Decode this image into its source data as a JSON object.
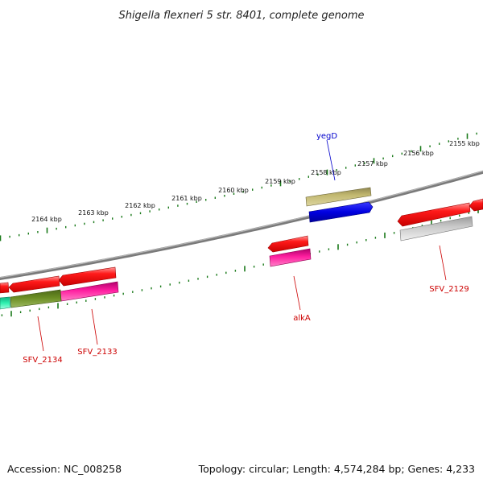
{
  "title": "Shigella flexneri 5 str. 8401, complete genome",
  "accession": "Accession: NC_008258",
  "summary": "Topology: circular; Length: 4,574,284 bp; Genes: 4,233",
  "tick_labels": [
    "2164 kbp",
    "2163 kbp",
    "2162 kbp",
    "2161 kbp",
    "2160 kbp",
    "2159 kbp",
    "2158 kbp",
    "2157 kbp",
    "2156 kbp",
    "2155 kbp"
  ],
  "genes": {
    "yegD": "yegD",
    "alkA": "alkA",
    "SFV_2129": "SFV_2129",
    "SFV_2133": "SFV_2133",
    "SFV_2134": "SFV_2134"
  },
  "colors": {
    "backbone": "#808080",
    "ticks": "#1a7a1a",
    "cds_red": "#ee0000",
    "gray_feature": "#b0b0b0",
    "olive": "#c2b870",
    "blue": "#0000dd",
    "magenta": "#e8108a",
    "dark_olive": "#6b8e23",
    "teal": "#20e0a0",
    "label_red": "#cc0000",
    "label_blue": "#0000cc"
  }
}
